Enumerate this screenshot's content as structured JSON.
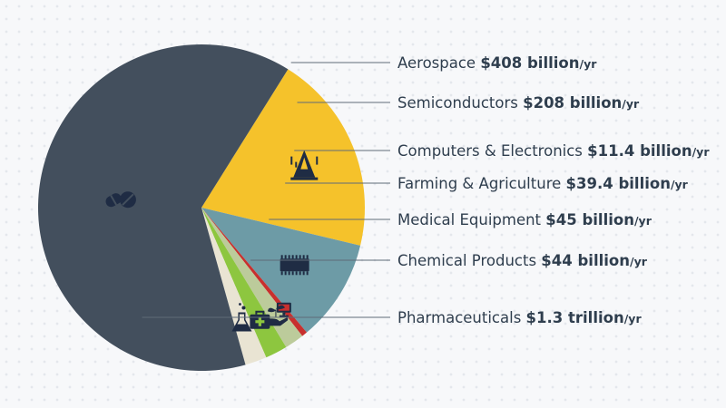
{
  "chart_data": {
    "type": "pie",
    "title": "",
    "slices": [
      {
        "label": "Aerospace",
        "value_text": "$408 billion",
        "unit": "/yr",
        "value": 408,
        "color": "#f5c22b",
        "icon": "rocket-icon"
      },
      {
        "label": "Semiconductors",
        "value_text": "$208 billion",
        "unit": "/yr",
        "value": 208,
        "color": "#6d9ba6",
        "icon": "microchip-icon"
      },
      {
        "label": "Computers & Electronics",
        "value_text": "$11.4 billion",
        "unit": "/yr",
        "value": 11.4,
        "color": "#c8302e",
        "icon": "monitor-icon"
      },
      {
        "label": "Farming & Agriculture",
        "value_text": "$39.4 billion",
        "unit": "/yr",
        "value": 39.4,
        "color": "#bccb9b",
        "icon": "seedling-hand-icon"
      },
      {
        "label": "Medical Equipment",
        "value_text": "$45 billion",
        "unit": "/yr",
        "value": 45,
        "color": "#8dc63f",
        "icon": "medical-kit-icon"
      },
      {
        "label": "Chemical Products",
        "value_text": "$44 billion",
        "unit": "/yr",
        "value": 44,
        "color": "#e9e4d3",
        "icon": "flask-icon"
      },
      {
        "label": "Pharmaceuticals",
        "value_text": "$1.3 trillion",
        "unit": "/yr",
        "value": 1300,
        "color": "#434f5d",
        "icon": "pills-icon"
      }
    ]
  }
}
